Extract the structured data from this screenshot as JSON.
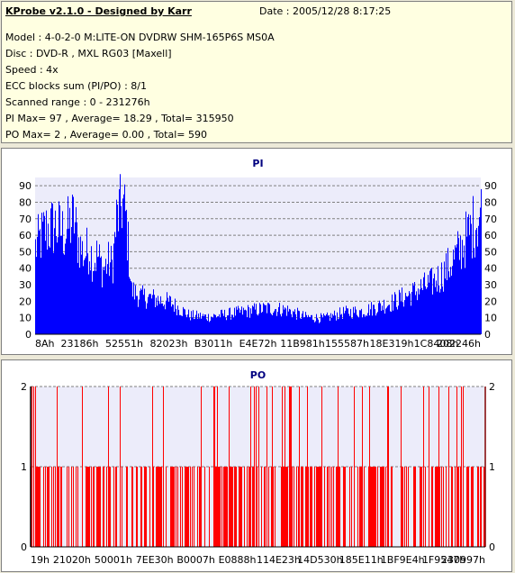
{
  "header": {
    "title": "KProbe v2.1.0 - Designed by Karr",
    "date": "Date : 2005/12/28 8:17:25",
    "model": "Model : 4-0-2-0 M:LITE-ON DVDRW SHM-165P6S MS0A",
    "disc": "Disc : DVD-R , MXL RG03 [Maxell]",
    "speed": "Speed : 4x",
    "ecc": "ECC blocks sum (PI/PO) : 8/1",
    "range": "Scanned range : 0 - 231276h",
    "pi_stats": "PI Max= 97 , Average= 18.29 , Total= 315950",
    "po_stats": "PO Max= 2 , Average= 0.00 , Total= 590"
  },
  "colors": {
    "pi_fill": "#0000ff",
    "po_line": "#ff0000",
    "plot_bg": "#ececfa",
    "grid": "#808080"
  },
  "chart_data": [
    {
      "type": "area",
      "title": "PI",
      "ylim": [
        0,
        95
      ],
      "yticks": [
        0,
        10,
        20,
        30,
        40,
        50,
        60,
        70,
        80,
        90
      ],
      "xlim": [
        0,
        231276
      ],
      "xtick_labels": [
        "8Ah",
        "23186h",
        "52551h",
        "82023h",
        "B3011h",
        "E4E72h",
        "11B981h",
        "155587h",
        "18E319h",
        "1C8408h",
        "202246h"
      ],
      "grid": true,
      "x": [
        0,
        5000,
        10000,
        15000,
        20000,
        22000,
        25000,
        28000,
        30000,
        32000,
        35000,
        38000,
        40000,
        42000,
        45000,
        47000,
        50000,
        55000,
        60000,
        70000,
        80000,
        90000,
        100000,
        110000,
        120000,
        130000,
        140000,
        150000,
        160000,
        170000,
        175000,
        180000,
        185000,
        190000,
        195000,
        200000,
        205000,
        210000,
        215000,
        220000,
        225000,
        231276
      ],
      "y": [
        60,
        72,
        75,
        70,
        80,
        65,
        55,
        60,
        50,
        55,
        45,
        50,
        48,
        78,
        92,
        80,
        30,
        26,
        25,
        22,
        13,
        12,
        14,
        16,
        18,
        17,
        12,
        11,
        15,
        16,
        18,
        20,
        22,
        25,
        28,
        32,
        35,
        40,
        48,
        58,
        70,
        85
      ]
    },
    {
      "type": "bar",
      "title": "PO",
      "ylim": [
        0,
        2
      ],
      "yticks": [
        0,
        1,
        2
      ],
      "xlim": [
        0,
        231276
      ],
      "xtick_labels": [
        "19h",
        "21020h",
        "50001h",
        "7EE30h",
        "B0007h",
        "E0888h",
        "114E23h",
        "14D530h",
        "185E11h",
        "1BF9E4h",
        "1F9547h",
        "230997h"
      ],
      "grid": true,
      "note_values": "sparse error counts of 1 (dense) and 2 (about 45 spikes) across the scanned range"
    }
  ]
}
